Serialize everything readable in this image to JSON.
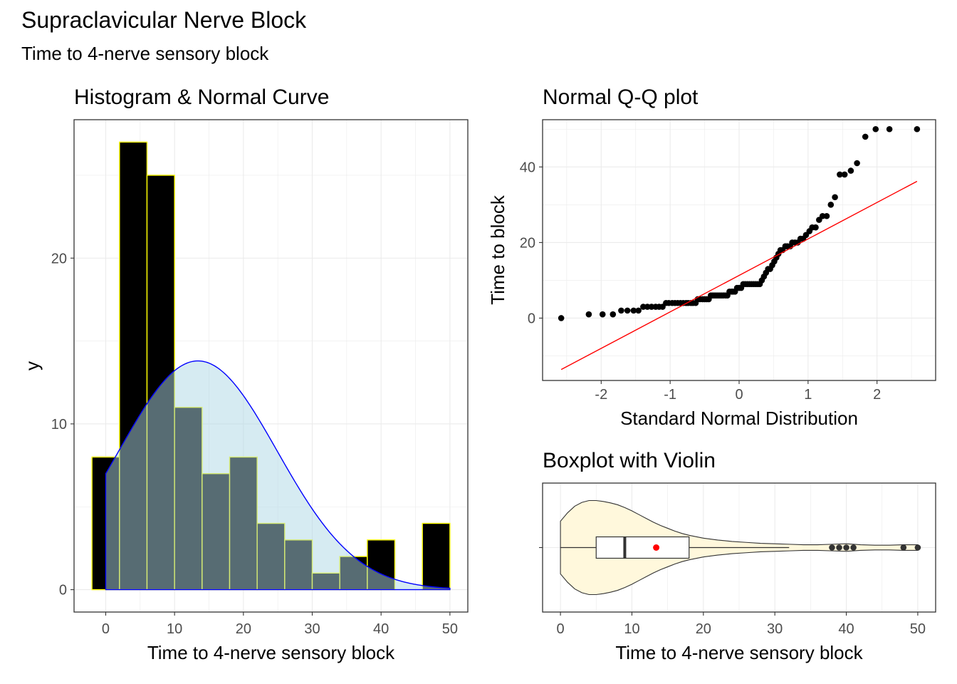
{
  "figure": {
    "title": "Supraclavicular Nerve Block",
    "subtitle": "Time to 4-nerve sensory block"
  },
  "chart_data": [
    {
      "type": "histogram",
      "title": "Histogram & Normal Curve",
      "xlabel": "Time to 4-nerve sensory block",
      "ylabel": "y",
      "xlim": [
        -4.6,
        52.6
      ],
      "ylim": [
        -1.35,
        28.35
      ],
      "x_ticks": [
        0,
        10,
        20,
        30,
        40,
        50
      ],
      "y_ticks": [
        0,
        10,
        20
      ],
      "bin_width": 4,
      "bins": [
        {
          "x0": -2,
          "x1": 2,
          "count": 8
        },
        {
          "x0": 2,
          "x1": 6,
          "count": 27
        },
        {
          "x0": 6,
          "x1": 10,
          "count": 25
        },
        {
          "x0": 10,
          "x1": 14,
          "count": 11
        },
        {
          "x0": 14,
          "x1": 18,
          "count": 7
        },
        {
          "x0": 18,
          "x1": 22,
          "count": 8
        },
        {
          "x0": 22,
          "x1": 26,
          "count": 4
        },
        {
          "x0": 26,
          "x1": 30,
          "count": 3
        },
        {
          "x0": 30,
          "x1": 34,
          "count": 1
        },
        {
          "x0": 34,
          "x1": 38,
          "count": 2
        },
        {
          "x0": 38,
          "x1": 42,
          "count": 3
        },
        {
          "x0": 46,
          "x1": 50,
          "count": 4
        }
      ],
      "normal_curve": {
        "mean": 13.4,
        "sd": 11.5,
        "peak": 13.8,
        "x_range": [
          0,
          50
        ]
      },
      "colors": {
        "bar_fill": "#000000",
        "bar_border": "#ffff00",
        "curve_fill": "#add8e6",
        "curve_line": "#0000ff"
      }
    },
    {
      "type": "scatter",
      "title": "Normal Q-Q plot",
      "xlabel": "Standard Normal Distribution",
      "ylabel": "Time to block",
      "xlim": [
        -2.85,
        2.85
      ],
      "ylim": [
        -16.5,
        52.5
      ],
      "x_ticks": [
        -2,
        -1,
        0,
        1,
        2
      ],
      "y_ticks": [
        0,
        20,
        40
      ],
      "points": [
        [
          -2.58,
          0
        ],
        [
          -2.18,
          1
        ],
        [
          -1.98,
          1
        ],
        [
          -1.83,
          1
        ],
        [
          -1.71,
          2
        ],
        [
          -1.62,
          2
        ],
        [
          -1.53,
          2
        ],
        [
          -1.46,
          2
        ],
        [
          -1.39,
          3
        ],
        [
          -1.33,
          3
        ],
        [
          -1.27,
          3
        ],
        [
          -1.21,
          3
        ],
        [
          -1.16,
          3
        ],
        [
          -1.11,
          3
        ],
        [
          -1.06,
          4
        ],
        [
          -1.02,
          4
        ],
        [
          -0.97,
          4
        ],
        [
          -0.93,
          4
        ],
        [
          -0.89,
          4
        ],
        [
          -0.85,
          4
        ],
        [
          -0.81,
          4
        ],
        [
          -0.77,
          4
        ],
        [
          -0.74,
          4
        ],
        [
          -0.7,
          4
        ],
        [
          -0.67,
          4
        ],
        [
          -0.63,
          4
        ],
        [
          -0.6,
          5
        ],
        [
          -0.57,
          5
        ],
        [
          -0.53,
          5
        ],
        [
          -0.5,
          5
        ],
        [
          -0.47,
          5
        ],
        [
          -0.44,
          5
        ],
        [
          -0.41,
          6
        ],
        [
          -0.38,
          6
        ],
        [
          -0.35,
          6
        ],
        [
          -0.32,
          6
        ],
        [
          -0.29,
          6
        ],
        [
          -0.26,
          6
        ],
        [
          -0.23,
          6
        ],
        [
          -0.2,
          6
        ],
        [
          -0.17,
          6
        ],
        [
          -0.14,
          7
        ],
        [
          -0.11,
          7
        ],
        [
          -0.09,
          7
        ],
        [
          -0.06,
          7
        ],
        [
          -0.03,
          8
        ],
        [
          0.0,
          8
        ],
        [
          0.03,
          8
        ],
        [
          0.06,
          9
        ],
        [
          0.09,
          9
        ],
        [
          0.12,
          9
        ],
        [
          0.15,
          9
        ],
        [
          0.18,
          9
        ],
        [
          0.21,
          9
        ],
        [
          0.24,
          9
        ],
        [
          0.27,
          9
        ],
        [
          0.3,
          9
        ],
        [
          0.33,
          10
        ],
        [
          0.36,
          11
        ],
        [
          0.39,
          12
        ],
        [
          0.42,
          13
        ],
        [
          0.45,
          13
        ],
        [
          0.48,
          14
        ],
        [
          0.51,
          15
        ],
        [
          0.54,
          16
        ],
        [
          0.57,
          17
        ],
        [
          0.6,
          18
        ],
        [
          0.63,
          18
        ],
        [
          0.67,
          19
        ],
        [
          0.7,
          19
        ],
        [
          0.74,
          19
        ],
        [
          0.77,
          20
        ],
        [
          0.81,
          20
        ],
        [
          0.85,
          20
        ],
        [
          0.89,
          21
        ],
        [
          0.93,
          21
        ],
        [
          0.97,
          22
        ],
        [
          1.02,
          23
        ],
        [
          1.06,
          24
        ],
        [
          1.11,
          24
        ],
        [
          1.16,
          26
        ],
        [
          1.21,
          27
        ],
        [
          1.27,
          27
        ],
        [
          1.33,
          30
        ],
        [
          1.39,
          32
        ],
        [
          1.46,
          38
        ],
        [
          1.53,
          38
        ],
        [
          1.62,
          39
        ],
        [
          1.71,
          41
        ],
        [
          1.83,
          48
        ],
        [
          1.98,
          50
        ],
        [
          2.18,
          50
        ],
        [
          2.58,
          50
        ]
      ],
      "reference_line": {
        "from": [
          -2.58,
          -13.6
        ],
        "to": [
          2.58,
          36.2
        ]
      },
      "colors": {
        "points": "#000000",
        "line": "#ff0000"
      }
    },
    {
      "type": "boxplot",
      "title": "Boxplot with Violin",
      "xlabel": "Time to 4-nerve sensory block",
      "ylabel": "",
      "xlim": [
        -2.5,
        52.5
      ],
      "x_ticks": [
        0,
        10,
        20,
        30,
        40,
        50
      ],
      "box": {
        "min": 0,
        "q1": 5,
        "median": 9,
        "q3": 18,
        "whisker_high": 32,
        "mean": 13.4
      },
      "outliers": [
        38,
        39,
        40,
        41,
        48,
        50
      ],
      "violin_density": [
        [
          0,
          0.56
        ],
        [
          1,
          0.74
        ],
        [
          2,
          0.88
        ],
        [
          3,
          0.96
        ],
        [
          4,
          1.0
        ],
        [
          5,
          1.0
        ],
        [
          6,
          0.98
        ],
        [
          7,
          0.95
        ],
        [
          8,
          0.91
        ],
        [
          9,
          0.85
        ],
        [
          10,
          0.78
        ],
        [
          11,
          0.7
        ],
        [
          12,
          0.62
        ],
        [
          13,
          0.54
        ],
        [
          14,
          0.47
        ],
        [
          15,
          0.41
        ],
        [
          16,
          0.35
        ],
        [
          17,
          0.3
        ],
        [
          18,
          0.26
        ],
        [
          19,
          0.23
        ],
        [
          20,
          0.2
        ],
        [
          22,
          0.16
        ],
        [
          24,
          0.13
        ],
        [
          26,
          0.11
        ],
        [
          28,
          0.09
        ],
        [
          30,
          0.08
        ],
        [
          32,
          0.07
        ],
        [
          34,
          0.06
        ],
        [
          36,
          0.06
        ],
        [
          38,
          0.07
        ],
        [
          40,
          0.08
        ],
        [
          42,
          0.06
        ],
        [
          44,
          0.05
        ],
        [
          46,
          0.05
        ],
        [
          48,
          0.06
        ],
        [
          50,
          0.06
        ]
      ],
      "colors": {
        "violin_fill": "#fff8dc",
        "box_fill": "#ffffff",
        "mean_point": "#ff0000",
        "outlier_points": "#333333"
      }
    }
  ]
}
